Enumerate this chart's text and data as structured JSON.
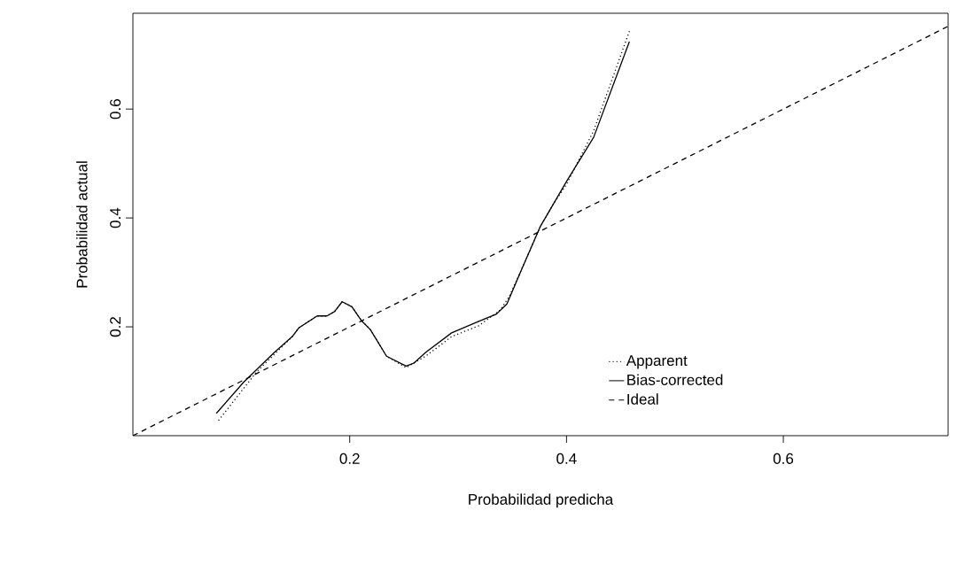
{
  "chart_data": {
    "type": "line",
    "xlabel": "Probabilidad predicha",
    "ylabel": "Probabilidad actual",
    "xlim": [
      0,
      0.752
    ],
    "ylim": [
      0,
      0.776
    ],
    "xticks": [
      0.2,
      0.4,
      0.6
    ],
    "yticks": [
      0.2,
      0.4,
      0.6
    ],
    "grid": false,
    "legend": "bottom right",
    "series": [
      {
        "name": "Apparent",
        "color": "#000000",
        "line_style": "dotted",
        "x": [
          0.079,
          0.114,
          0.147,
          0.153,
          0.17,
          0.179,
          0.186,
          0.193,
          0.202,
          0.211,
          0.219,
          0.234,
          0.252,
          0.27,
          0.294,
          0.319,
          0.339,
          0.347,
          0.36,
          0.376,
          0.388,
          0.4,
          0.425,
          0.458
        ],
        "values": [
          0.028,
          0.117,
          0.182,
          0.198,
          0.22,
          0.22,
          0.228,
          0.246,
          0.237,
          0.211,
          0.195,
          0.146,
          0.125,
          0.146,
          0.182,
          0.202,
          0.231,
          0.255,
          0.312,
          0.385,
          0.426,
          0.462,
          0.56,
          0.743
        ]
      },
      {
        "name": "Bias-corrected",
        "color": "#000000",
        "line_style": "solid",
        "x": [
          0.077,
          0.102,
          0.13,
          0.147,
          0.153,
          0.17,
          0.179,
          0.186,
          0.193,
          0.202,
          0.211,
          0.219,
          0.234,
          0.252,
          0.259,
          0.27,
          0.294,
          0.319,
          0.335,
          0.345,
          0.36,
          0.376,
          0.388,
          0.4,
          0.425,
          0.458
        ],
        "values": [
          0.041,
          0.098,
          0.152,
          0.182,
          0.198,
          0.22,
          0.22,
          0.228,
          0.246,
          0.237,
          0.211,
          0.195,
          0.146,
          0.128,
          0.133,
          0.153,
          0.189,
          0.21,
          0.223,
          0.242,
          0.312,
          0.385,
          0.426,
          0.467,
          0.548,
          0.724
        ]
      },
      {
        "name": "Ideal",
        "color": "#000000",
        "line_style": "dashed",
        "x": [
          0,
          0.752
        ],
        "values": [
          0,
          0.752
        ]
      }
    ]
  }
}
